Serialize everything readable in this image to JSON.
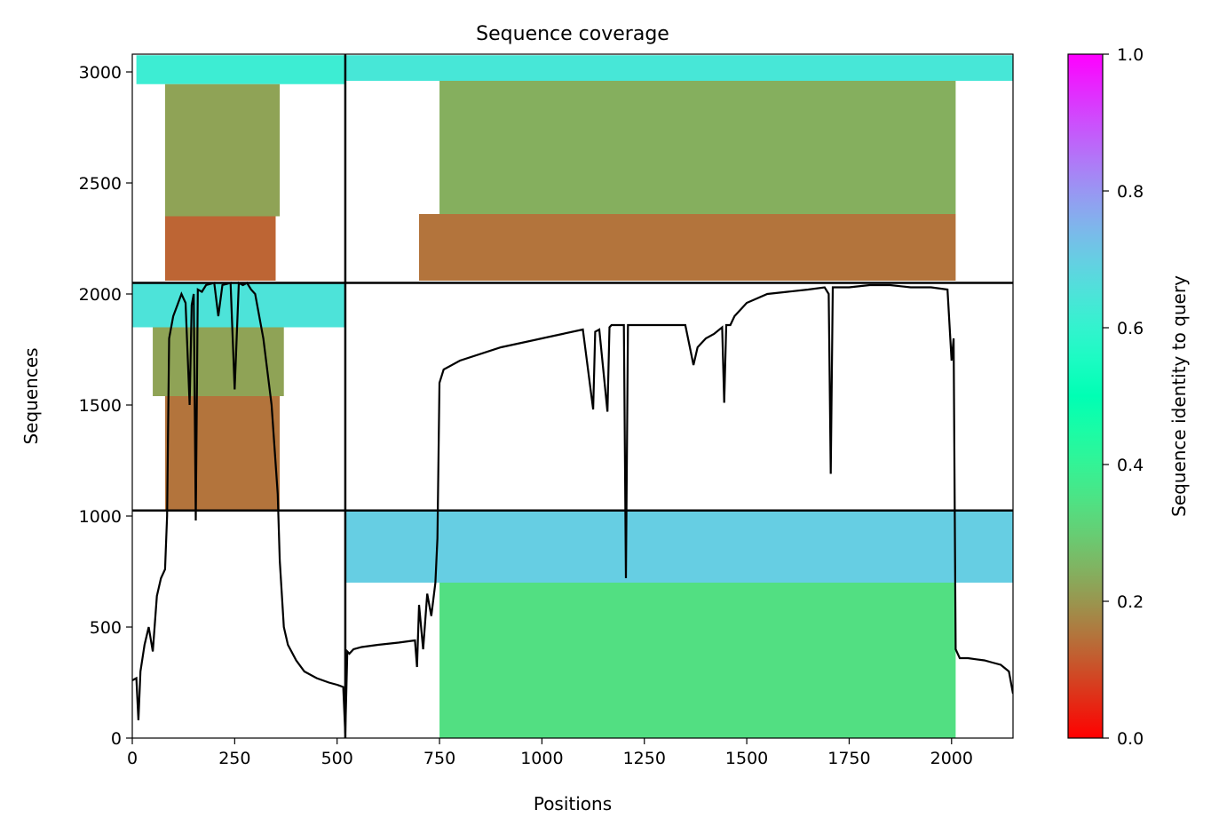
{
  "chart_data": {
    "type": "heatmap",
    "title": "Sequence coverage",
    "xlabel": "Positions",
    "ylabel": "Sequences",
    "xlim": [
      0,
      2150
    ],
    "ylim": [
      0,
      3080
    ],
    "xticks": [
      0,
      250,
      500,
      750,
      1000,
      1250,
      1500,
      1750,
      2000
    ],
    "yticks": [
      0,
      500,
      1000,
      1500,
      2000,
      2500,
      3000
    ],
    "colorbar": {
      "label": "Sequence identity to query",
      "colormap": "rainbow_r",
      "range": [
        0,
        1
      ],
      "ticks": [
        0.0,
        0.2,
        0.4,
        0.6,
        0.8,
        1.0
      ],
      "tick_labels": [
        "0.0",
        "0.2",
        "0.4",
        "0.6",
        "0.8",
        "1.0"
      ]
    },
    "chain_boundaries": {
      "x": [
        520
      ],
      "y": [
        1025,
        2050
      ]
    },
    "blocks": [
      {
        "x_start": 10,
        "x_end": 520,
        "y_start": 2945,
        "y_end": 3075,
        "identity": 0.62
      },
      {
        "x_start": 80,
        "x_end": 360,
        "y_start": 2350,
        "y_end": 2945,
        "identity": 0.22
      },
      {
        "x_start": 80,
        "x_end": 350,
        "y_start": 2060,
        "y_end": 2350,
        "identity": 0.13
      },
      {
        "x_start": 520,
        "x_end": 2150,
        "y_start": 2960,
        "y_end": 3075,
        "identity": 0.64
      },
      {
        "x_start": 750,
        "x_end": 2010,
        "y_start": 2360,
        "y_end": 2960,
        "identity": 0.24
      },
      {
        "x_start": 700,
        "x_end": 2010,
        "y_start": 2060,
        "y_end": 2360,
        "identity": 0.15
      },
      {
        "x_start": 0,
        "x_end": 520,
        "y_start": 1850,
        "y_end": 2050,
        "identity": 0.65
      },
      {
        "x_start": 50,
        "x_end": 370,
        "y_start": 1540,
        "y_end": 1850,
        "identity": 0.22
      },
      {
        "x_start": 80,
        "x_end": 360,
        "y_start": 1025,
        "y_end": 1540,
        "identity": 0.15
      },
      {
        "x_start": 520,
        "x_end": 2150,
        "y_start": 700,
        "y_end": 1025,
        "identity": 0.7
      },
      {
        "x_start": 750,
        "x_end": 2010,
        "y_start": 0,
        "y_end": 700,
        "identity": 0.34
      }
    ],
    "coverage_line": {
      "x": [
        0,
        10,
        15,
        20,
        30,
        40,
        50,
        60,
        70,
        80,
        85,
        90,
        100,
        110,
        120,
        130,
        140,
        145,
        150,
        155,
        160,
        170,
        180,
        200,
        210,
        220,
        240,
        250,
        260,
        270,
        280,
        290,
        300,
        320,
        340,
        355,
        360,
        370,
        380,
        400,
        420,
        450,
        480,
        500,
        515,
        520,
        525,
        530,
        540,
        560,
        600,
        650,
        690,
        695,
        700,
        710,
        720,
        730,
        740,
        745,
        750,
        760,
        800,
        900,
        1000,
        1050,
        1100,
        1125,
        1130,
        1140,
        1160,
        1165,
        1170,
        1200,
        1205,
        1210,
        1250,
        1300,
        1350,
        1370,
        1380,
        1400,
        1420,
        1440,
        1445,
        1450,
        1460,
        1470,
        1500,
        1550,
        1600,
        1650,
        1690,
        1700,
        1705,
        1710,
        1750,
        1800,
        1850,
        1900,
        1950,
        1990,
        2000,
        2005,
        2010,
        2020,
        2040,
        2060,
        2080,
        2100,
        2120,
        2140,
        2150
      ],
      "y": [
        260,
        270,
        80,
        300,
        420,
        500,
        390,
        640,
        720,
        760,
        1000,
        1800,
        1900,
        1950,
        2000,
        1960,
        1500,
        1950,
        2000,
        980,
        2020,
        2010,
        2040,
        2050,
        1900,
        2040,
        2050,
        1570,
        2050,
        2040,
        2050,
        2020,
        2000,
        1800,
        1500,
        1100,
        800,
        500,
        420,
        350,
        300,
        270,
        250,
        240,
        230,
        20,
        390,
        380,
        400,
        410,
        420,
        430,
        440,
        320,
        600,
        400,
        650,
        550,
        700,
        900,
        1600,
        1660,
        1700,
        1760,
        1800,
        1820,
        1840,
        1480,
        1830,
        1840,
        1470,
        1850,
        1860,
        1860,
        720,
        1860,
        1860,
        1860,
        1860,
        1680,
        1760,
        1800,
        1820,
        1850,
        1510,
        1860,
        1860,
        1900,
        1960,
        2000,
        2010,
        2020,
        2030,
        2000,
        1190,
        2030,
        2030,
        2040,
        2040,
        2030,
        2030,
        2020,
        1700,
        1800,
        400,
        360,
        360,
        355,
        350,
        340,
        330,
        300,
        200
      ]
    }
  }
}
